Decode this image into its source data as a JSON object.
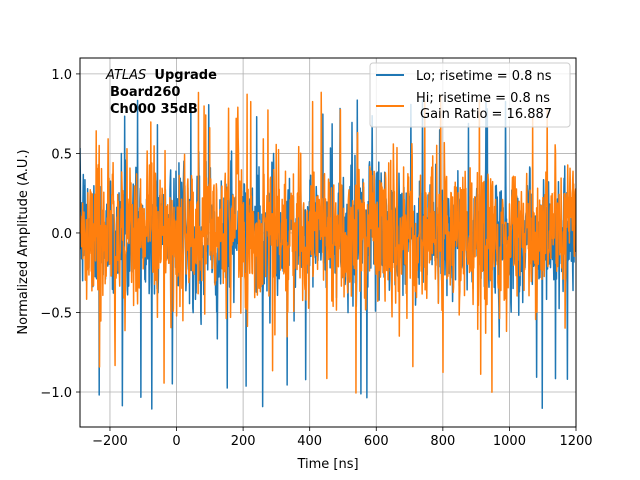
{
  "chart_data": {
    "type": "line",
    "xlabel": "Time [ns]",
    "ylabel": "Normalized Amplitude (A.U.)",
    "xlim": [
      -290,
      1200
    ],
    "ylim": [
      -1.22,
      1.1
    ],
    "xticks": [
      -200,
      0,
      200,
      400,
      600,
      800,
      1000,
      1200
    ],
    "yticks": [
      -1.0,
      -0.5,
      0.0,
      0.5,
      1.0
    ],
    "xtick_labels": [
      "−200",
      "0",
      "200",
      "400",
      "600",
      "800",
      "1000",
      "1200"
    ],
    "ytick_labels": [
      "−1.0",
      "−0.5",
      "0.0",
      "0.5",
      "1.0"
    ],
    "grid": true,
    "legend_position": "top-right",
    "series": [
      {
        "name": "Lo; risetime = 0.8 ns",
        "color": "#1f77b4",
        "description": "noise waveform",
        "x_start": -290,
        "x_end": 1200,
        "typical_amplitude": 0.35,
        "min": -1.11,
        "max": 0.85
      },
      {
        "name": "Hi; risetime = 0.8 ns",
        "color": "#ff7f0e",
        "description": "noise waveform",
        "x_start": -290,
        "x_end": 1200,
        "typical_amplitude": 0.4,
        "min": -1.02,
        "max": 0.9
      }
    ],
    "legend_extra": "Gain Ratio = 16.887",
    "annotation": {
      "experiment": "ATLAS",
      "experiment_suffix": "Upgrade",
      "line2": "Board260",
      "line3": "Ch000 35dB"
    }
  }
}
